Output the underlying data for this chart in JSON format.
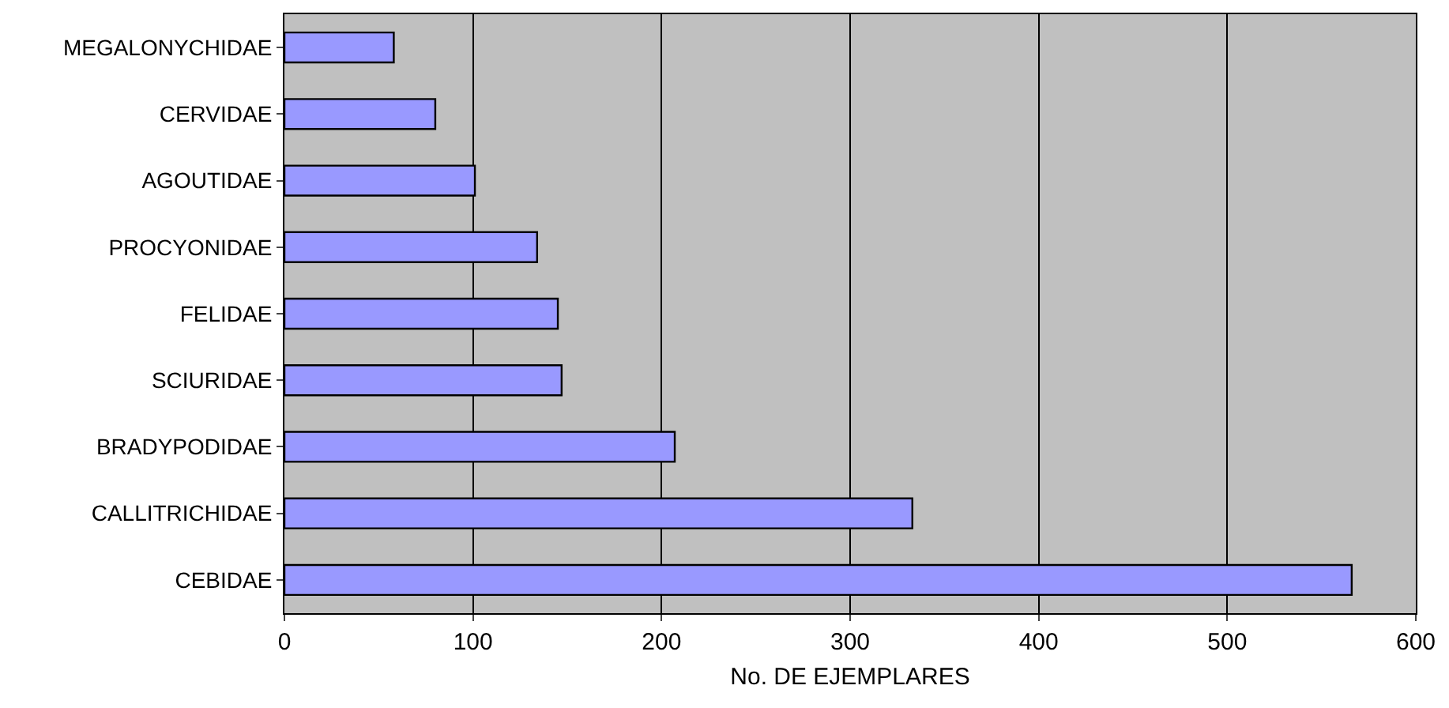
{
  "chart_data": {
    "type": "bar",
    "orientation": "horizontal",
    "xlabel": "No. DE EJEMPLARES",
    "categories": [
      "MEGALONYCHIDAE",
      "CERVIDAE",
      "AGOUTIDAE",
      "PROCYONIDAE",
      "FELIDAE",
      "SCIURIDAE",
      "BRADYPODIDAE",
      "CALLITRICHIDAE",
      "CEBIDAE"
    ],
    "values": [
      58,
      80,
      101,
      134,
      145,
      147,
      207,
      333,
      566
    ],
    "color": "#9999ff",
    "xlim": [
      0,
      600
    ],
    "xticks": [
      0,
      100,
      200,
      300,
      400,
      500,
      600
    ],
    "grid": "x"
  }
}
